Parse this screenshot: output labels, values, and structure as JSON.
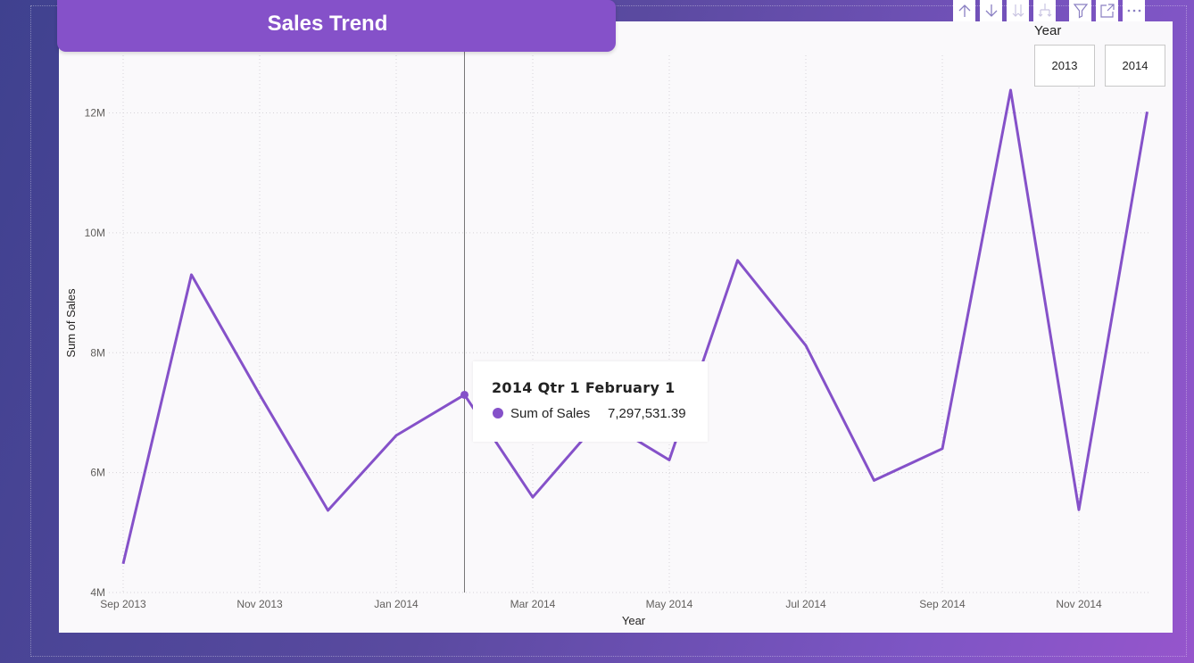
{
  "title": "Sales Trend",
  "accent_color": "#8551c9",
  "toolbar": {
    "icons": [
      "drill-up-icon",
      "drill-down-icon",
      "expand-next-level-icon",
      "expand-hierarchy-icon",
      "filter-icon",
      "focus-mode-icon",
      "more-options-icon"
    ]
  },
  "slicer": {
    "title": "Year",
    "options": [
      "2013",
      "2014"
    ]
  },
  "tooltip": {
    "title": "2014 Qtr 1 February 1",
    "series_label": "Sum of Sales",
    "value": "7,297,531.39"
  },
  "chart_data": {
    "type": "line",
    "xlabel": "Year",
    "ylabel": "Sum of Sales",
    "x_tick_labels": [
      "Sep 2013",
      "Nov 2013",
      "Jan 2014",
      "Mar 2014",
      "May 2014",
      "Jul 2014",
      "Sep 2014",
      "Nov 2014"
    ],
    "y_tick_labels": [
      "4M",
      "6M",
      "8M",
      "10M",
      "12M"
    ],
    "ylim": [
      4000000,
      12000000
    ],
    "grid": true,
    "highlighted_point": "Feb 2014",
    "series": [
      {
        "name": "Sum of Sales",
        "color": "#8551c9",
        "x": [
          "Sep 2013",
          "Oct 2013",
          "Nov 2013",
          "Dec 2013",
          "Jan 2014",
          "Feb 2014",
          "Mar 2014",
          "Apr 2014",
          "May 2014",
          "Jun 2014",
          "Jul 2014",
          "Aug 2014",
          "Sep 2014",
          "Oct 2014",
          "Nov 2014",
          "Dec 2014"
        ],
        "values": [
          4480000,
          9300000,
          7300000,
          5370000,
          6620000,
          7297531.39,
          5590000,
          6900000,
          6210000,
          9540000,
          8120000,
          5870000,
          6400000,
          12380000,
          5380000,
          12020000
        ]
      }
    ]
  }
}
